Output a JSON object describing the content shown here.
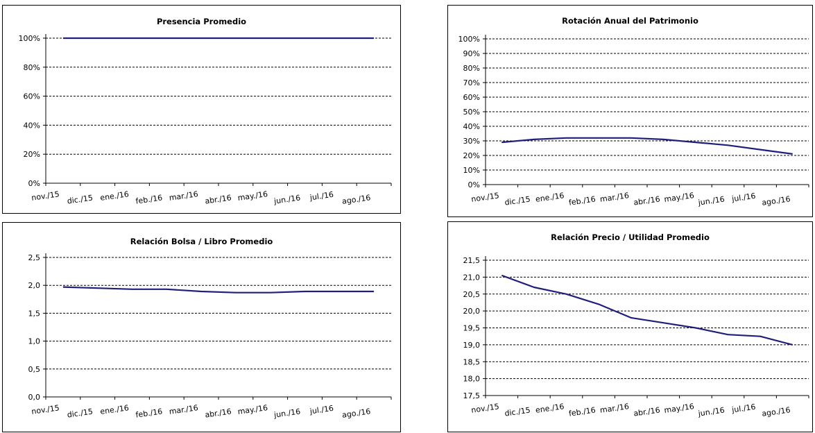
{
  "chart_data": [
    {
      "type": "line",
      "title": "Presencia Promedio",
      "categories": [
        "nov./15",
        "dic./15",
        "ene./16",
        "feb./16",
        "mar./16",
        "abr./16",
        "may./16",
        "jun./16",
        "jul./16",
        "ago./16"
      ],
      "series": [
        {
          "values": [
            1.0,
            1.0,
            1.0,
            1.0,
            1.0,
            1.0,
            1.0,
            1.0,
            1.0,
            1.0
          ]
        }
      ],
      "ylim": [
        0,
        1.0
      ],
      "yticks": [
        0,
        0.2,
        0.4,
        0.6,
        0.8,
        1.0
      ],
      "ytick_labels": [
        "0%",
        "20%",
        "40%",
        "60%",
        "80%",
        "100%"
      ],
      "grid": true,
      "line_color": "#1f1f7a"
    },
    {
      "type": "line",
      "title": "Rotación Anual del Patrimonio",
      "categories": [
        "nov./15",
        "dic./15",
        "ene./16",
        "feb./16",
        "mar./16",
        "abr./16",
        "may./16",
        "jun./16",
        "jul./16",
        "ago./16"
      ],
      "series": [
        {
          "values": [
            0.29,
            0.31,
            0.32,
            0.32,
            0.32,
            0.31,
            0.29,
            0.27,
            0.24,
            0.21
          ]
        }
      ],
      "ylim": [
        0,
        1.0
      ],
      "yticks": [
        0,
        0.1,
        0.2,
        0.3,
        0.4,
        0.5,
        0.6,
        0.7,
        0.8,
        0.9,
        1.0
      ],
      "ytick_labels": [
        "0%",
        "10%",
        "20%",
        "30%",
        "40%",
        "50%",
        "60%",
        "70%",
        "80%",
        "90%",
        "100%"
      ],
      "grid": true,
      "line_color": "#1f1f7a"
    },
    {
      "type": "line",
      "title": "Relación  Bolsa  / Libro Promedio",
      "categories": [
        "nov./15",
        "dic./15",
        "ene./16",
        "feb./16",
        "mar./16",
        "abr./16",
        "may./16",
        "jun./16",
        "jul./16",
        "ago./16"
      ],
      "series": [
        {
          "values": [
            1.97,
            1.95,
            1.93,
            1.93,
            1.89,
            1.87,
            1.87,
            1.89,
            1.89,
            1.89
          ]
        }
      ],
      "ylim": [
        0,
        2.5
      ],
      "yticks": [
        0,
        0.5,
        1.0,
        1.5,
        2.0,
        2.5
      ],
      "ytick_labels": [
        "0,0",
        "0,5",
        "1,0",
        "1,5",
        "2,0",
        "2,5"
      ],
      "grid": true,
      "line_color": "#1f1f7a"
    },
    {
      "type": "line",
      "title": "Relación  Precio  / Utilidad  Promedio",
      "categories": [
        "nov./15",
        "dic./15",
        "ene./16",
        "feb./16",
        "mar./16",
        "abr./16",
        "may./16",
        "jun./16",
        "jul./16",
        "ago./16"
      ],
      "series": [
        {
          "values": [
            21.05,
            20.7,
            20.5,
            20.2,
            19.8,
            19.65,
            19.5,
            19.3,
            19.25,
            19.0
          ]
        }
      ],
      "ylim": [
        17.5,
        21.5
      ],
      "yticks": [
        17.5,
        18.0,
        18.5,
        19.0,
        19.5,
        20.0,
        20.5,
        21.0,
        21.5
      ],
      "ytick_labels": [
        "17,5",
        "18,0",
        "18,5",
        "19,0",
        "19,5",
        "20,0",
        "20,5",
        "21,0",
        "21,5"
      ],
      "grid": true,
      "line_color": "#1f1f7a"
    }
  ]
}
